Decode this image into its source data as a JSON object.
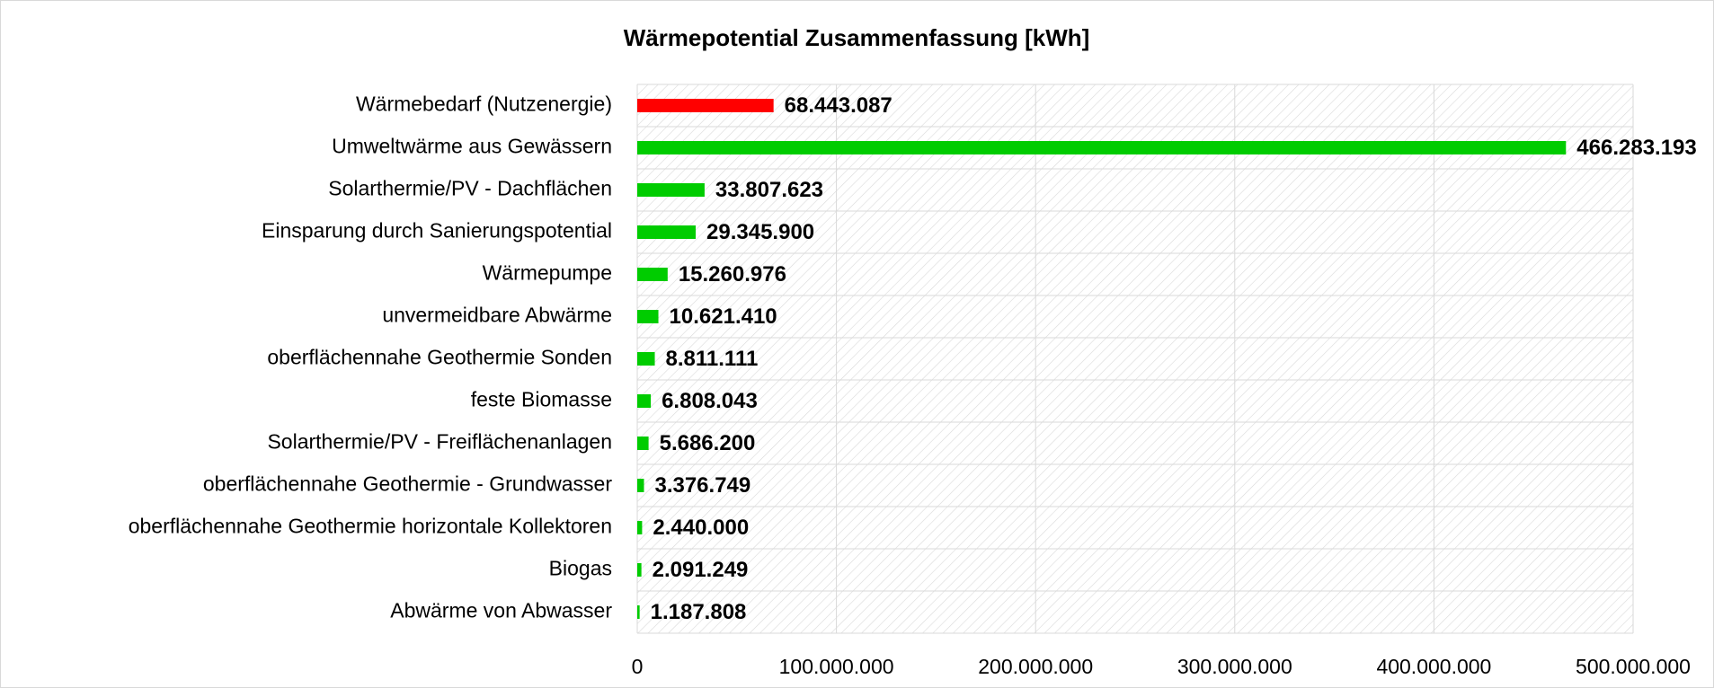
{
  "chart_data": {
    "type": "barh",
    "title": "Wärmepotential Zusammenfassung [kWh]",
    "categories": [
      "Wärmebedarf (Nutzenergie)",
      "Umweltwärme aus Gewässern",
      "Solarthermie/PV - Dachflächen",
      "Einsparung durch Sanierungspotential",
      "Wärmepumpe",
      "unvermeidbare Abwärme",
      "oberflächennahe Geothermie Sonden",
      "feste Biomasse",
      "Solarthermie/PV - Freiflächenanlagen",
      "oberflächennahe Geothermie - Grundwasser",
      "oberflächennahe Geothermie horizontale Kollektoren",
      "Biogas",
      "Abwärme von Abwasser"
    ],
    "values": [
      68443087,
      466283193,
      33807623,
      29345900,
      15260976,
      10621410,
      8811111,
      6808043,
      5686200,
      3376749,
      2440000,
      2091249,
      1187808
    ],
    "value_labels": [
      "68.443.087",
      "466.283.193",
      "33.807.623",
      "29.345.900",
      "15.260.976",
      "10.621.410",
      "8.811.111",
      "6.808.043",
      "5.686.200",
      "3.376.749",
      "2.440.000",
      "2.091.249",
      "1.187.808"
    ],
    "colors": [
      "#ff0000",
      "#00cc00",
      "#00cc00",
      "#00cc00",
      "#00cc00",
      "#00cc00",
      "#00cc00",
      "#00cc00",
      "#00cc00",
      "#00cc00",
      "#00cc00",
      "#00cc00",
      "#00cc00"
    ],
    "xlim": [
      0,
      500000000
    ],
    "xticks": [
      0,
      {
        "value": 100000000,
        "label": "100.000.000"
      },
      {
        "value": 200000000,
        "label": "200.000.000"
      },
      {
        "value": 300000000,
        "label": "300.000.000"
      },
      {
        "value": 400000000,
        "label": "400.000.000"
      },
      {
        "value": 500000000,
        "label": "500.000.000"
      }
    ],
    "grid": true
  }
}
